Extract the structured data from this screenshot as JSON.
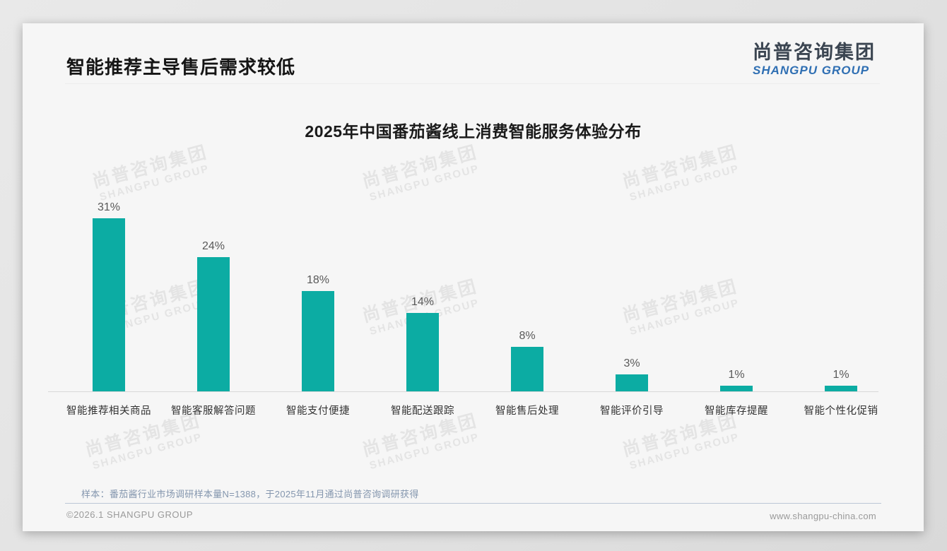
{
  "page": {
    "title": "智能推荐主导售后需求较低",
    "logo": {
      "cn": "尚普咨询集团",
      "en": "SHANGPU GROUP"
    },
    "watermark": {
      "cn": "尚普咨询集团",
      "en": "SHANGPU GROUP"
    },
    "note": "样本：番茄酱行业市场调研样本量N=1388，于2025年11月通过尚普咨询调研获得",
    "footer_left": "©2026.1 SHANGPU GROUP",
    "footer_right": "www.shangpu-china.com"
  },
  "chart_data": {
    "type": "bar",
    "title": "2025年中国番茄酱线上消费智能服务体验分布",
    "categories": [
      "智能推荐相关商品",
      "智能客服解答问题",
      "智能支付便捷",
      "智能配送跟踪",
      "智能售后处理",
      "智能评价引导",
      "智能库存提醒",
      "智能个性化促销"
    ],
    "values": [
      31,
      24,
      18,
      14,
      8,
      3,
      1,
      1
    ],
    "data_labels": [
      "31%",
      "24%",
      "18%",
      "14%",
      "8%",
      "3%",
      "1%",
      "1%"
    ],
    "unit": "%",
    "bar_color": "#0caca3",
    "label_color": "#595959",
    "ylim": [
      0,
      33
    ],
    "grid": false,
    "legend": false,
    "xlabel": "",
    "ylabel": ""
  }
}
